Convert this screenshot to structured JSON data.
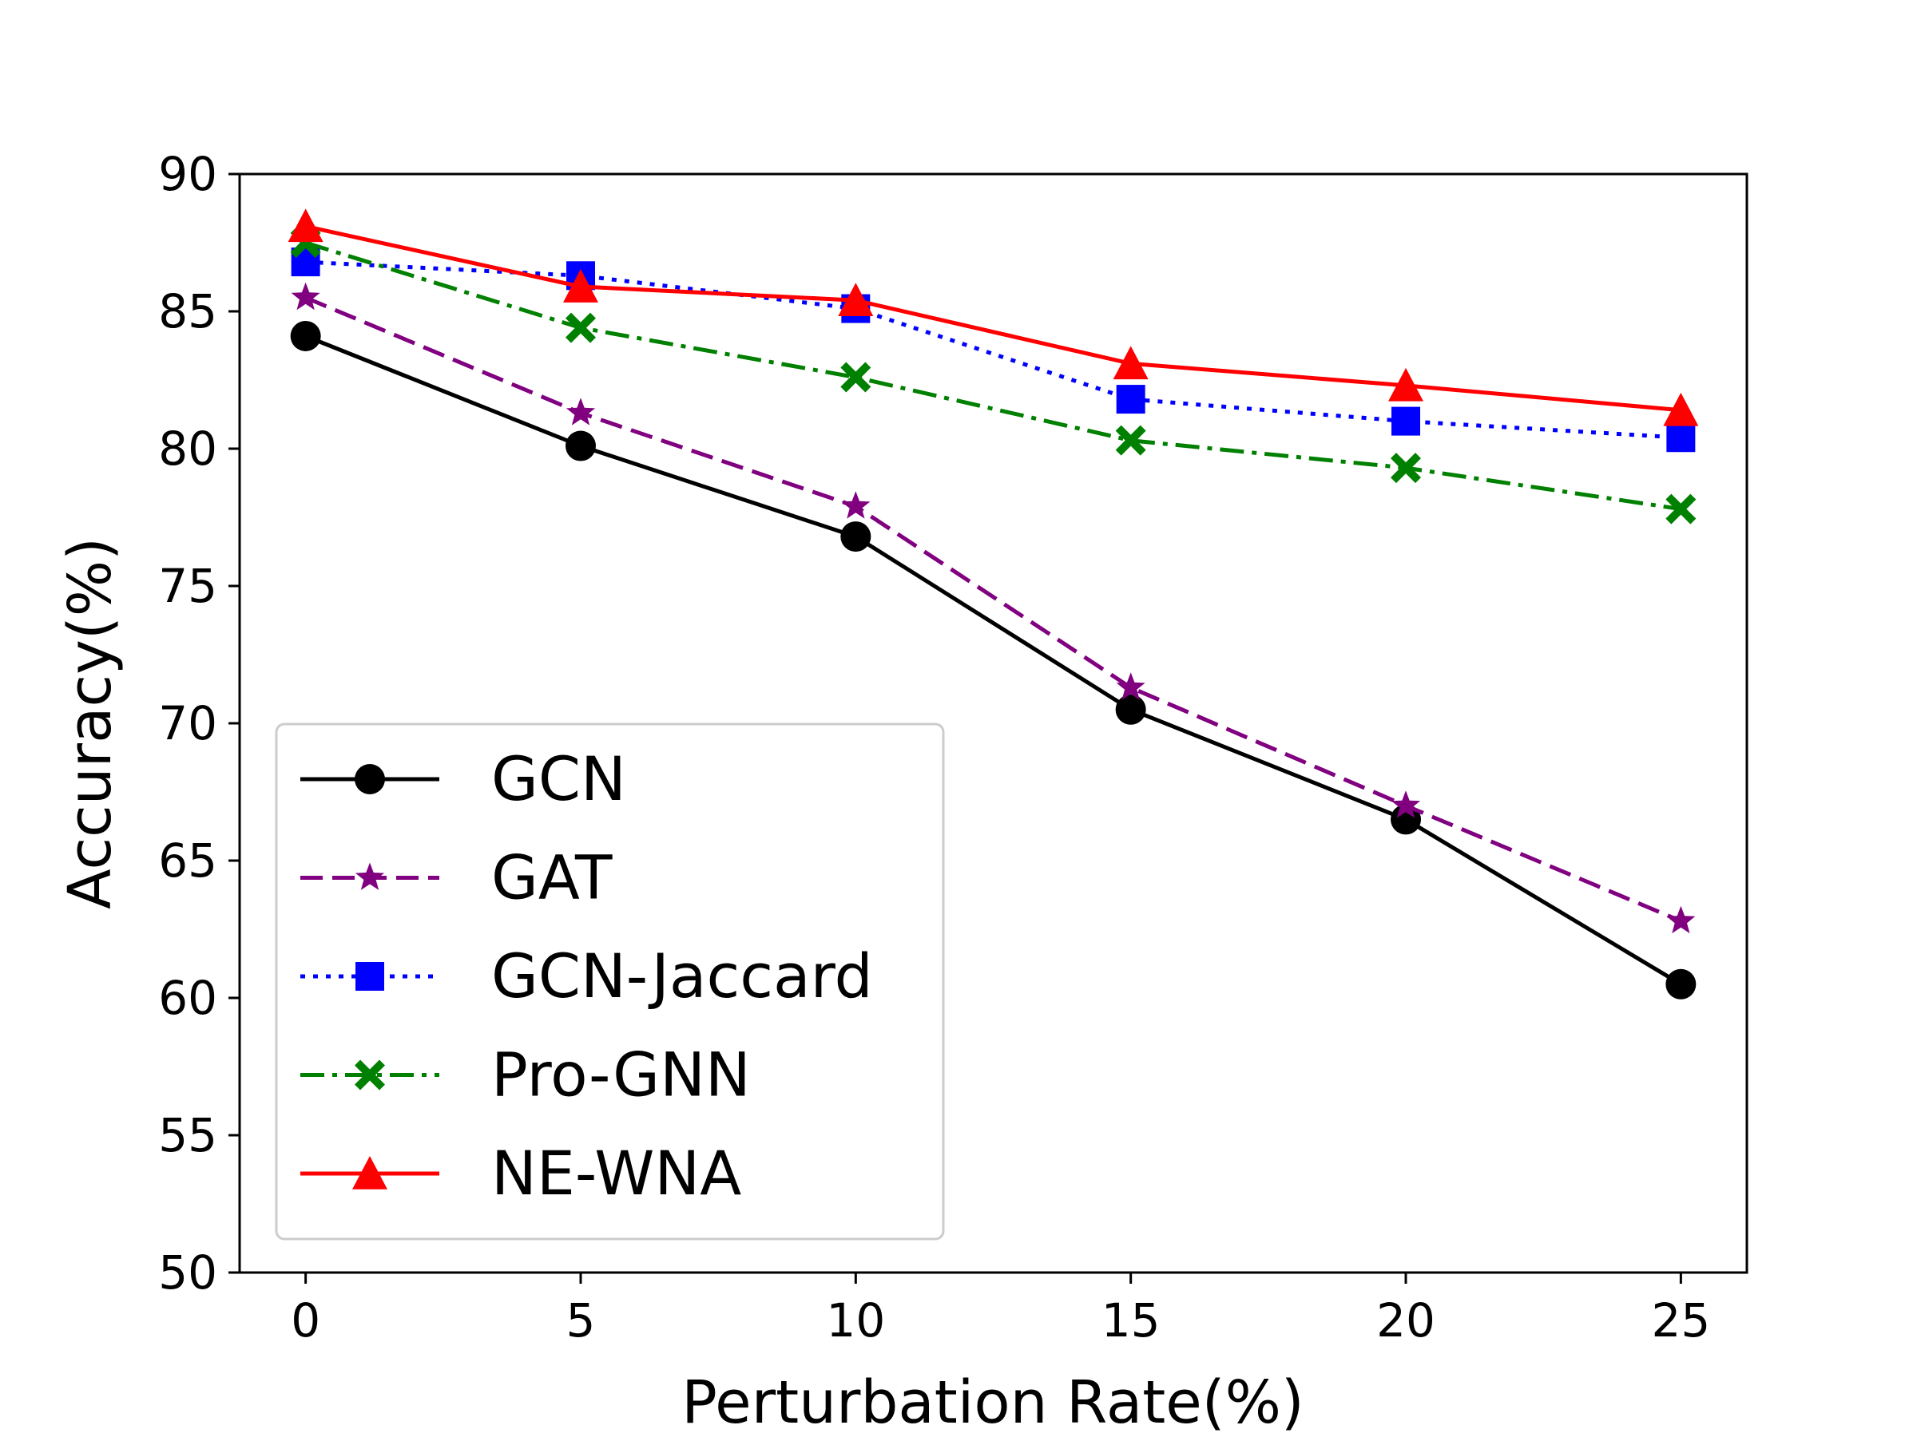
{
  "chart_data": {
    "type": "line",
    "title": "",
    "xlabel": "Perturbation Rate(%)",
    "ylabel": "Accuracy(%)",
    "x": [
      0,
      5,
      10,
      15,
      20,
      25
    ],
    "xlim": [
      -1.2,
      26.2
    ],
    "ylim": [
      50,
      90
    ],
    "xticks": [
      0,
      5,
      10,
      15,
      20,
      25
    ],
    "yticks": [
      50,
      55,
      60,
      65,
      70,
      75,
      80,
      85,
      90
    ],
    "grid": false,
    "legend_position": "lower-left",
    "series": [
      {
        "name": "GCN",
        "values": [
          84.1,
          80.1,
          76.8,
          70.5,
          66.5,
          60.5
        ],
        "color": "#000000",
        "marker": "circle",
        "linestyle": "solid"
      },
      {
        "name": "GAT",
        "values": [
          85.5,
          81.3,
          77.9,
          71.3,
          67.0,
          62.8
        ],
        "color": "#800080",
        "marker": "star",
        "linestyle": "dashed"
      },
      {
        "name": "GCN-Jaccard",
        "values": [
          86.8,
          86.3,
          85.1,
          81.8,
          81.0,
          80.4
        ],
        "color": "#0000ff",
        "marker": "square",
        "linestyle": "dotted"
      },
      {
        "name": "Pro-GNN",
        "values": [
          87.5,
          84.4,
          82.6,
          80.3,
          79.3,
          77.8
        ],
        "color": "#008000",
        "marker": "x-filled",
        "linestyle": "dashdot"
      },
      {
        "name": "NE-WNA",
        "values": [
          88.1,
          85.9,
          85.4,
          83.1,
          82.3,
          81.4
        ],
        "color": "#ff0000",
        "marker": "triangle",
        "linestyle": "solid"
      }
    ]
  }
}
